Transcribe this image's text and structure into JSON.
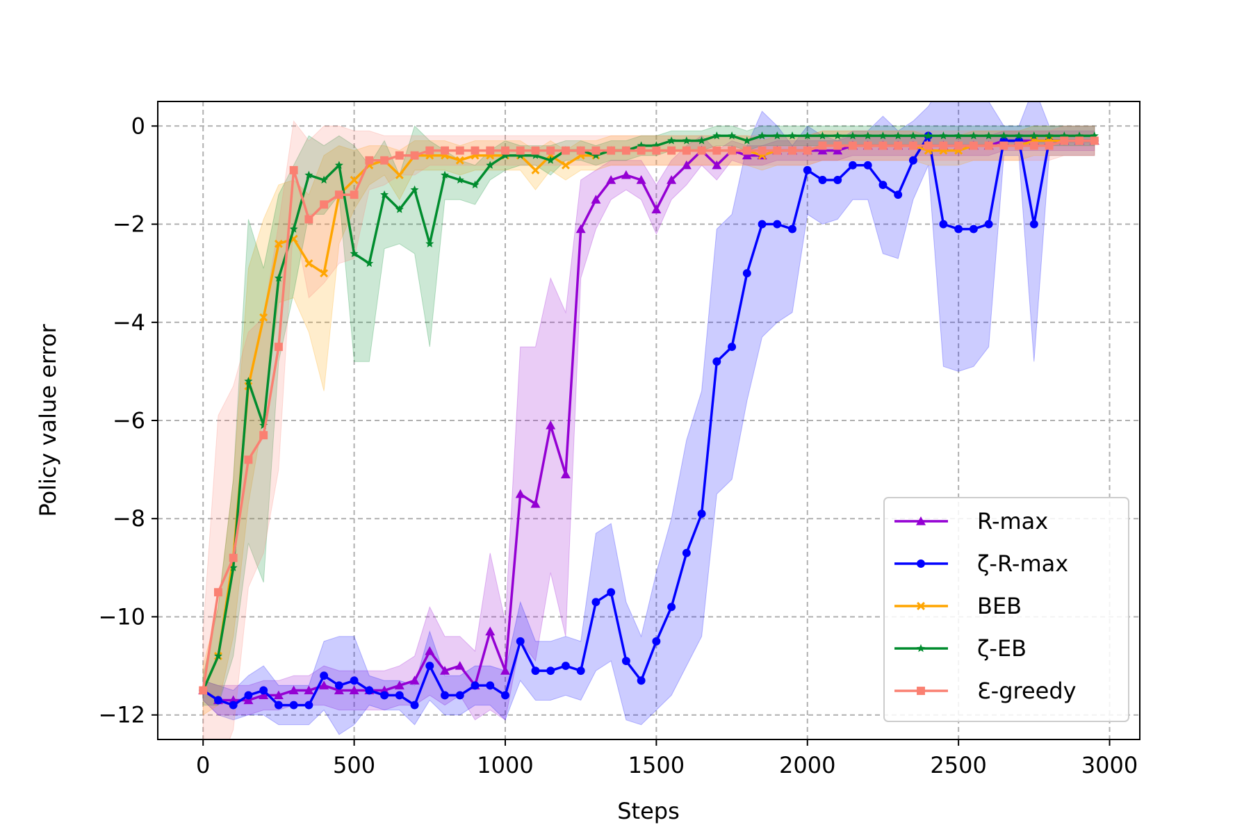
{
  "chart_data": {
    "type": "line",
    "title": "",
    "xlabel": "Steps",
    "ylabel": "Policy value error",
    "xlim": [
      -150,
      3100
    ],
    "ylim": [
      -12.5,
      0.5
    ],
    "xticks": [
      0,
      500,
      1000,
      1500,
      2000,
      2500,
      3000
    ],
    "yticks": [
      0,
      -2,
      -4,
      -6,
      -8,
      -10,
      -12
    ],
    "xtick_labels": [
      "0",
      "500",
      "1000",
      "1500",
      "2000",
      "2500",
      "3000"
    ],
    "ytick_labels": [
      "0",
      "−2",
      "−4",
      "−6",
      "−8",
      "−10",
      "−12"
    ],
    "grid": true,
    "legend_position": "lower-right",
    "x": [
      0,
      50,
      100,
      150,
      200,
      250,
      300,
      350,
      400,
      450,
      500,
      550,
      600,
      650,
      700,
      750,
      800,
      850,
      900,
      950,
      1000,
      1050,
      1100,
      1150,
      1200,
      1250,
      1300,
      1350,
      1400,
      1450,
      1500,
      1550,
      1600,
      1650,
      1700,
      1750,
      1800,
      1850,
      1900,
      1950,
      2000,
      2050,
      2100,
      2150,
      2200,
      2250,
      2300,
      2350,
      2400,
      2450,
      2500,
      2550,
      2600,
      2650,
      2700,
      2750,
      2800,
      2850,
      2900,
      2950
    ],
    "series": [
      {
        "name": "R-max",
        "color": "#9400d3",
        "marker": "triangle",
        "values": [
          -11.5,
          -11.7,
          -11.7,
          -11.7,
          -11.6,
          -11.6,
          -11.5,
          -11.5,
          -11.4,
          -11.5,
          -11.5,
          -11.5,
          -11.5,
          -11.4,
          -11.3,
          -10.7,
          -11.1,
          -11.0,
          -11.4,
          -10.3,
          -11.1,
          -7.5,
          -7.7,
          -6.1,
          -7.1,
          -2.1,
          -1.5,
          -1.1,
          -1.0,
          -1.1,
          -1.7,
          -1.1,
          -0.8,
          -0.5,
          -0.8,
          -0.5,
          -0.6,
          -0.6,
          -0.5,
          -0.5,
          -0.5,
          -0.5,
          -0.5,
          -0.4,
          -0.4,
          -0.4,
          -0.4,
          -0.4,
          -0.4,
          -0.4,
          -0.4,
          -0.4,
          -0.4,
          -0.3,
          -0.3,
          -0.3,
          -0.3,
          -0.3,
          -0.3,
          -0.3
        ],
        "band": [
          0.2,
          0.3,
          0.3,
          0.3,
          0.3,
          0.3,
          0.3,
          0.3,
          0.4,
          0.4,
          0.4,
          0.4,
          0.4,
          0.4,
          0.5,
          0.9,
          0.7,
          0.6,
          0.7,
          1.6,
          1.0,
          3.0,
          3.2,
          3.0,
          3.3,
          1.0,
          0.6,
          0.4,
          0.3,
          0.4,
          0.5,
          0.4,
          0.4,
          0.3,
          0.3,
          0.2,
          0.2,
          0.2,
          0.2,
          0.2,
          0.2,
          0.2,
          0.2,
          0.2,
          0.2,
          0.2,
          0.2,
          0.2,
          0.2,
          0.2,
          0.2,
          0.2,
          0.2,
          0.2,
          0.2,
          0.2,
          0.2,
          0.2,
          0.2,
          0.2
        ]
      },
      {
        "name": "ζ-R-max",
        "color": "#0000ff",
        "marker": "circle",
        "values": [
          -11.5,
          -11.7,
          -11.8,
          -11.6,
          -11.5,
          -11.8,
          -11.8,
          -11.8,
          -11.2,
          -11.4,
          -11.3,
          -11.5,
          -11.6,
          -11.6,
          -11.8,
          -11.0,
          -11.6,
          -11.6,
          -11.4,
          -11.4,
          -11.6,
          -10.5,
          -11.1,
          -11.1,
          -11.0,
          -11.1,
          -9.7,
          -9.5,
          -10.9,
          -11.3,
          -10.5,
          -9.8,
          -8.7,
          -7.9,
          -4.8,
          -4.5,
          -3.0,
          -2.0,
          -2.0,
          -2.1,
          -0.9,
          -1.1,
          -1.1,
          -0.8,
          -0.8,
          -1.2,
          -1.4,
          -0.7,
          -0.2,
          -2.0,
          -2.1,
          -2.1,
          -2.0,
          -0.3,
          -0.3,
          -2.0,
          -0.3,
          -0.3,
          -0.3,
          -0.3
        ],
        "band": [
          0.2,
          0.3,
          0.3,
          0.4,
          0.5,
          0.4,
          0.4,
          0.4,
          0.7,
          1.0,
          0.9,
          0.3,
          0.3,
          0.3,
          0.4,
          0.7,
          0.4,
          0.4,
          0.4,
          0.4,
          0.5,
          0.8,
          0.6,
          0.6,
          0.6,
          0.6,
          1.4,
          1.4,
          1.2,
          0.9,
          1.4,
          1.8,
          2.3,
          2.5,
          2.7,
          2.7,
          2.6,
          2.3,
          2.0,
          1.7,
          0.9,
          0.9,
          0.8,
          0.7,
          0.7,
          1.4,
          1.3,
          0.8,
          0.6,
          2.9,
          2.9,
          2.8,
          2.5,
          0.3,
          0.3,
          2.8,
          0.3,
          0.3,
          0.3,
          0.3
        ]
      },
      {
        "name": "BEB",
        "color": "#ffa500",
        "marker": "x",
        "values": [
          -11.5,
          -10.8,
          -8.8,
          -5.3,
          -3.9,
          -2.4,
          -2.3,
          -2.8,
          -3.0,
          -1.4,
          -1.1,
          -0.8,
          -0.7,
          -1.0,
          -0.6,
          -0.6,
          -0.6,
          -0.7,
          -0.6,
          -0.6,
          -0.6,
          -0.6,
          -0.9,
          -0.6,
          -0.8,
          -0.6,
          -0.6,
          -0.5,
          -0.5,
          -0.5,
          -0.5,
          -0.5,
          -0.5,
          -0.5,
          -0.5,
          -0.5,
          -0.5,
          -0.6,
          -0.5,
          -0.5,
          -0.5,
          -0.4,
          -0.4,
          -0.4,
          -0.4,
          -0.4,
          -0.4,
          -0.4,
          -0.5,
          -0.5,
          -0.5,
          -0.4,
          -0.4,
          -0.4,
          -0.4,
          -0.3,
          -0.3,
          -0.3,
          -0.3,
          -0.3
        ],
        "band": [
          0.5,
          1.0,
          1.6,
          2.4,
          2.0,
          1.2,
          1.2,
          1.4,
          2.4,
          1.0,
          0.6,
          0.4,
          0.3,
          0.5,
          0.3,
          0.3,
          0.3,
          0.3,
          0.3,
          0.3,
          0.3,
          0.3,
          0.4,
          0.3,
          0.3,
          0.3,
          0.3,
          0.3,
          0.3,
          0.3,
          0.3,
          0.3,
          0.3,
          0.3,
          0.3,
          0.3,
          0.3,
          0.3,
          0.3,
          0.3,
          0.3,
          0.3,
          0.3,
          0.3,
          0.3,
          0.3,
          0.3,
          0.3,
          0.3,
          0.3,
          0.3,
          0.3,
          0.3,
          0.3,
          0.3,
          0.3,
          0.3,
          0.3,
          0.3,
          0.3
        ]
      },
      {
        "name": "ζ-EB",
        "color": "#008c2e",
        "marker": "star",
        "values": [
          -11.5,
          -10.8,
          -9.0,
          -5.2,
          -6.1,
          -3.1,
          -2.1,
          -1.0,
          -1.1,
          -0.8,
          -2.6,
          -2.8,
          -1.4,
          -1.7,
          -1.3,
          -2.4,
          -1.0,
          -1.1,
          -1.2,
          -0.8,
          -0.6,
          -0.6,
          -0.6,
          -0.7,
          -0.5,
          -0.5,
          -0.6,
          -0.5,
          -0.5,
          -0.4,
          -0.4,
          -0.3,
          -0.3,
          -0.3,
          -0.2,
          -0.2,
          -0.3,
          -0.2,
          -0.2,
          -0.2,
          -0.2,
          -0.2,
          -0.2,
          -0.2,
          -0.2,
          -0.2,
          -0.2,
          -0.2,
          -0.2,
          -0.2,
          -0.2,
          -0.2,
          -0.2,
          -0.2,
          -0.2,
          -0.2,
          -0.2,
          -0.2,
          -0.2,
          -0.2
        ],
        "band": [
          0.3,
          1.0,
          1.8,
          3.3,
          3.2,
          1.7,
          1.3,
          0.8,
          0.7,
          0.6,
          2.2,
          2.0,
          1.1,
          0.7,
          1.3,
          2.1,
          0.5,
          0.4,
          0.4,
          0.3,
          0.3,
          0.2,
          0.2,
          0.3,
          0.2,
          0.2,
          0.2,
          0.2,
          0.2,
          0.2,
          0.2,
          0.2,
          0.2,
          0.2,
          0.2,
          0.2,
          0.2,
          0.2,
          0.2,
          0.2,
          0.2,
          0.2,
          0.2,
          0.2,
          0.2,
          0.2,
          0.2,
          0.2,
          0.2,
          0.2,
          0.2,
          0.2,
          0.2,
          0.2,
          0.2,
          0.2,
          0.2,
          0.2,
          0.2,
          0.2
        ]
      },
      {
        "name": "Ɛ-greedy",
        "color": "#fa8072",
        "marker": "square",
        "values": [
          -11.5,
          -9.5,
          -8.8,
          -6.8,
          -6.3,
          -4.5,
          -0.9,
          -1.9,
          -1.6,
          -1.4,
          -1.4,
          -0.7,
          -0.7,
          -0.6,
          -0.6,
          -0.5,
          -0.5,
          -0.5,
          -0.5,
          -0.5,
          -0.5,
          -0.5,
          -0.5,
          -0.5,
          -0.5,
          -0.5,
          -0.5,
          -0.5,
          -0.5,
          -0.5,
          -0.5,
          -0.5,
          -0.5,
          -0.5,
          -0.5,
          -0.5,
          -0.5,
          -0.5,
          -0.5,
          -0.5,
          -0.5,
          -0.4,
          -0.4,
          -0.4,
          -0.4,
          -0.4,
          -0.4,
          -0.4,
          -0.4,
          -0.4,
          -0.4,
          -0.4,
          -0.4,
          -0.4,
          -0.4,
          -0.4,
          -0.4,
          -0.3,
          -0.3,
          -0.3
        ],
        "band": [
          1.2,
          3.6,
          3.5,
          2.6,
          2.4,
          2.5,
          1.0,
          1.6,
          1.6,
          1.4,
          1.3,
          0.6,
          0.5,
          0.4,
          0.4,
          0.3,
          0.3,
          0.3,
          0.3,
          0.3,
          0.3,
          0.3,
          0.3,
          0.3,
          0.3,
          0.3,
          0.3,
          0.3,
          0.3,
          0.3,
          0.3,
          0.3,
          0.3,
          0.3,
          0.3,
          0.3,
          0.3,
          0.3,
          0.3,
          0.3,
          0.3,
          0.3,
          0.3,
          0.3,
          0.3,
          0.3,
          0.3,
          0.3,
          0.3,
          0.3,
          0.3,
          0.3,
          0.3,
          0.3,
          0.3,
          0.3,
          0.3,
          0.3,
          0.3,
          0.3
        ]
      }
    ]
  }
}
